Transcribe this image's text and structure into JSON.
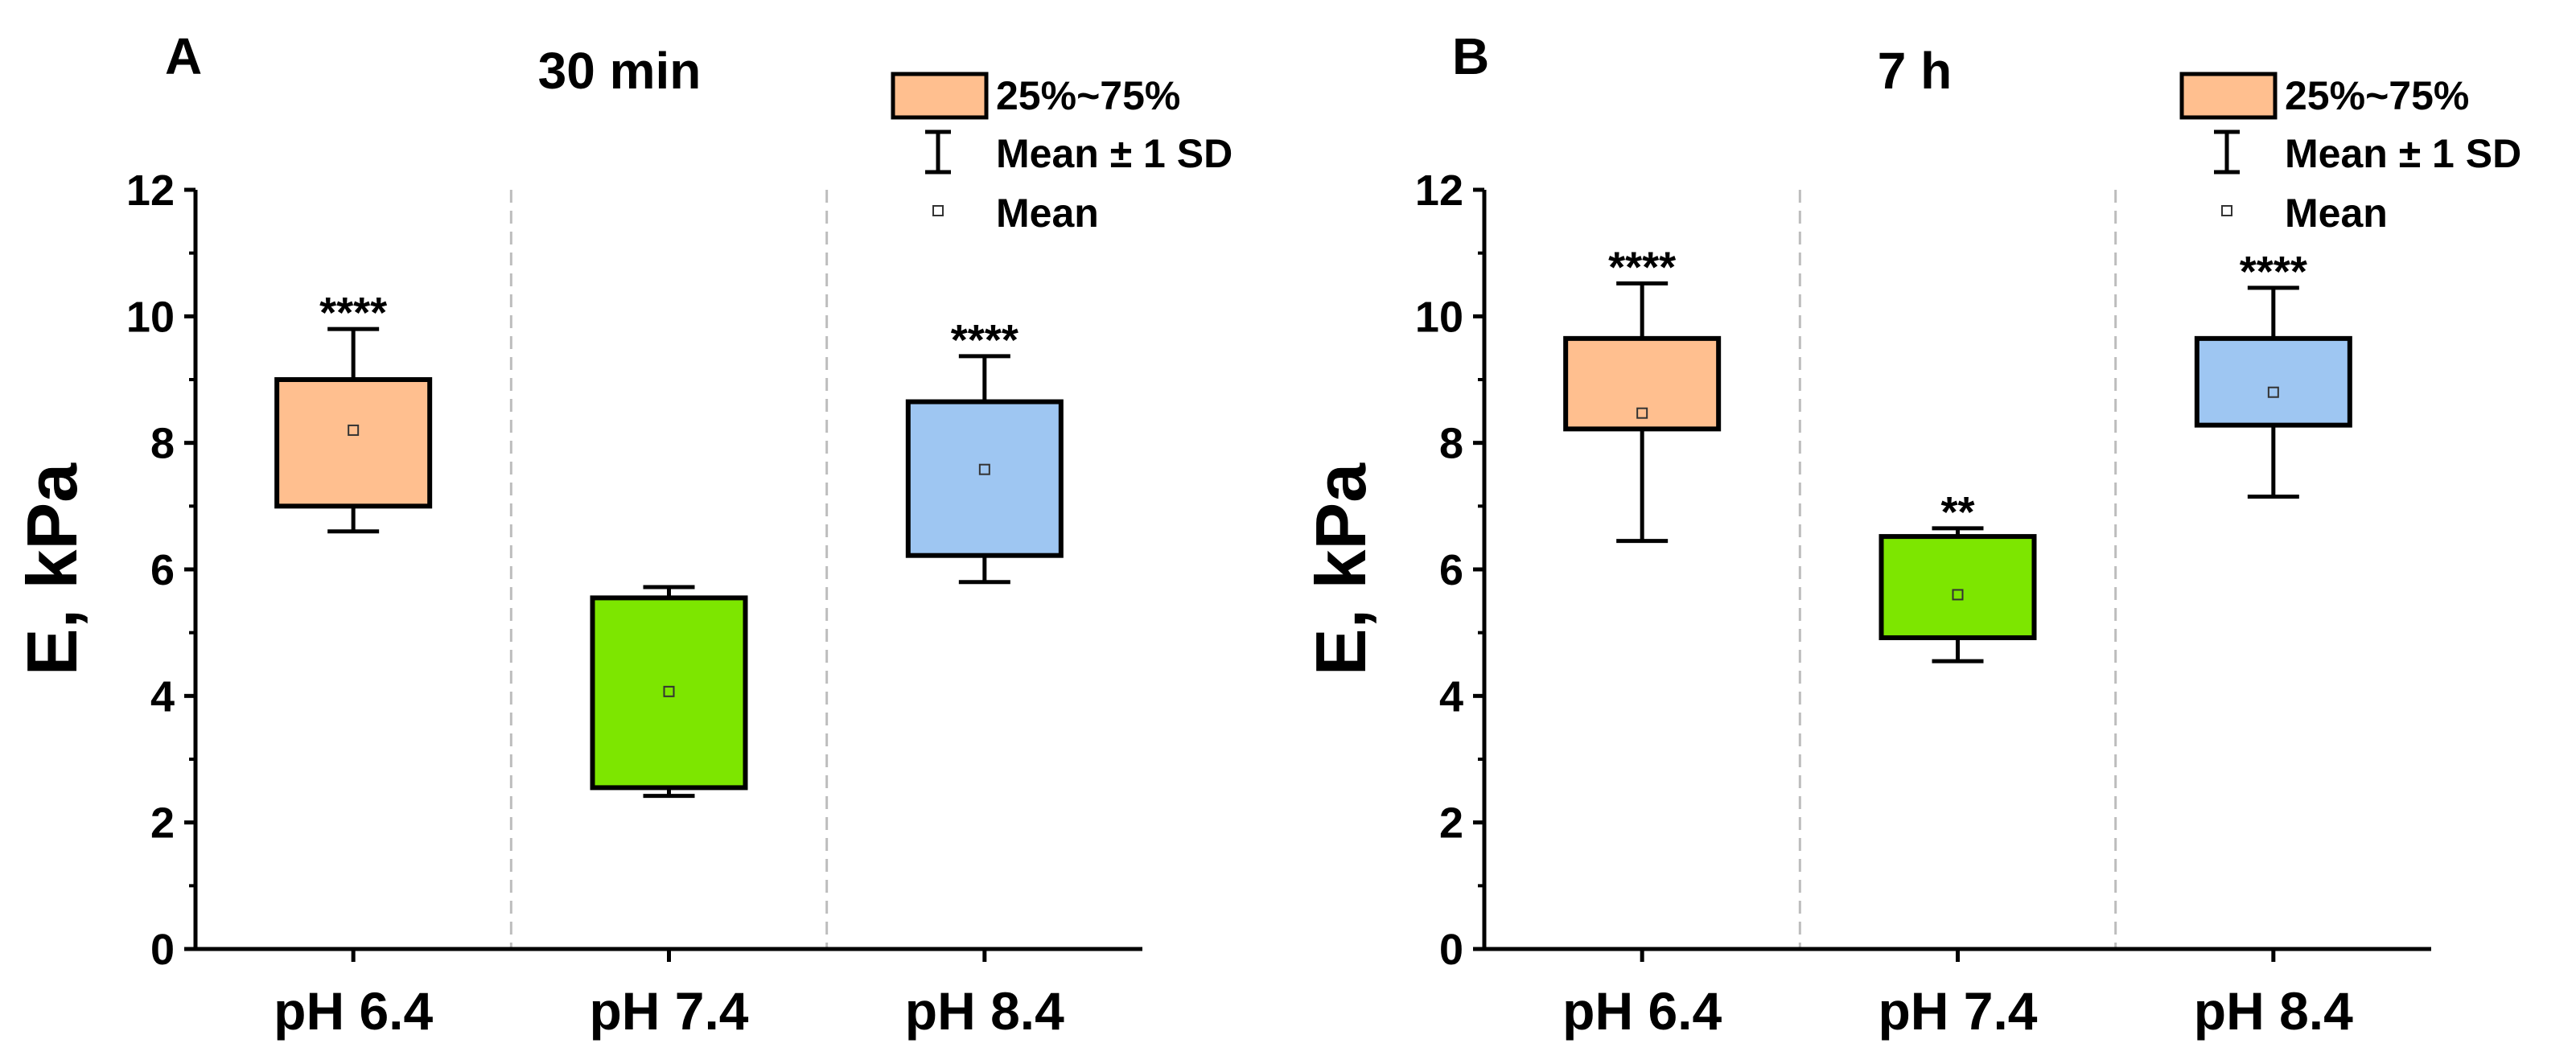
{
  "colors": {
    "ph64": "#FFBF8F",
    "ph74": "#7DE600",
    "ph84": "#9EC6F2",
    "grid": "#BDBDBD"
  },
  "legend": {
    "box_label": "25%~75%",
    "whisker_label": "Mean ± 1 SD",
    "mean_label": "Mean"
  },
  "chart_data": [
    {
      "type": "box",
      "panel": "A",
      "title": "30 min",
      "xlabel": "",
      "ylabel": "E, kPa",
      "ylim": [
        0,
        12
      ],
      "yticks": [
        0,
        2,
        4,
        6,
        8,
        10,
        12
      ],
      "categories": [
        "pH 6.4",
        "pH 7.4",
        "pH 8.4"
      ],
      "boxes": [
        {
          "category": "pH 6.4",
          "q1": 7.0,
          "q3": 9.0,
          "mean": 8.2,
          "whisker_low": 6.6,
          "whisker_high": 9.8,
          "significance": "****",
          "color": "#FFBF8F"
        },
        {
          "category": "pH 7.4",
          "q1": 2.55,
          "q3": 5.55,
          "mean": 4.07,
          "whisker_low": 2.42,
          "whisker_high": 5.72,
          "significance": "",
          "color": "#7DE600"
        },
        {
          "category": "pH 8.4",
          "q1": 6.22,
          "q3": 8.65,
          "mean": 7.58,
          "whisker_low": 5.8,
          "whisker_high": 9.37,
          "significance": "****",
          "color": "#9EC6F2"
        }
      ]
    },
    {
      "type": "box",
      "panel": "B",
      "title": "7 h",
      "xlabel": "",
      "ylabel": "E, kPa",
      "ylim": [
        0,
        12
      ],
      "yticks": [
        0,
        2,
        4,
        6,
        8,
        10,
        12
      ],
      "categories": [
        "pH 6.4",
        "pH 7.4",
        "pH 8.4"
      ],
      "boxes": [
        {
          "category": "pH 6.4",
          "q1": 8.22,
          "q3": 9.65,
          "mean": 8.47,
          "whisker_low": 6.45,
          "whisker_high": 10.52,
          "significance": "****",
          "color": "#FFBF8F"
        },
        {
          "category": "pH 7.4",
          "q1": 4.92,
          "q3": 6.52,
          "mean": 5.6,
          "whisker_low": 4.55,
          "whisker_high": 6.65,
          "significance": "**",
          "color": "#7DE600"
        },
        {
          "category": "pH 8.4",
          "q1": 8.28,
          "q3": 9.65,
          "mean": 8.8,
          "whisker_low": 7.15,
          "whisker_high": 10.45,
          "significance": "****",
          "color": "#9EC6F2"
        }
      ]
    }
  ]
}
